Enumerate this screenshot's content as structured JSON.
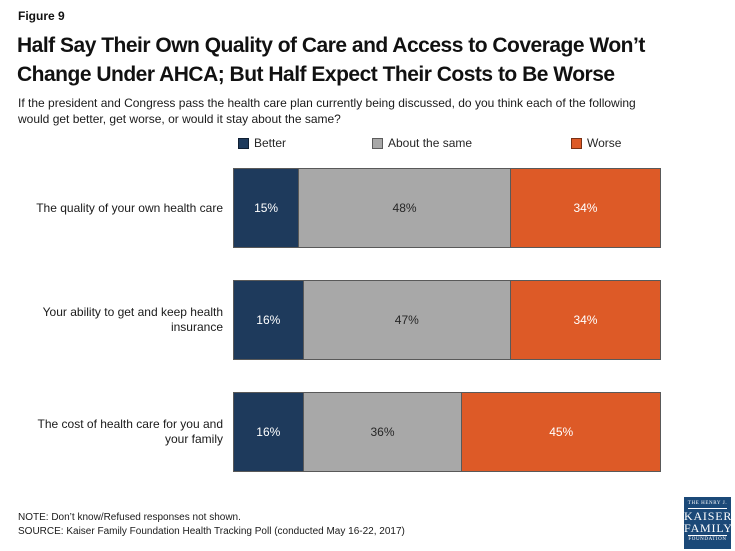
{
  "figure_label": "Figure 9",
  "title": "Half Say Their Own Quality of Care and Access to Coverage Won’t Change Under AHCA; But Half Expect Their Costs to Be Worse",
  "subtitle": "If the president and Congress pass the health care plan currently being discussed, do you think each of the following would get better, get worse, or would it stay about the same?",
  "chart_data": {
    "type": "bar",
    "orientation": "horizontal-stacked",
    "title": "Half Say Their Own Quality of Care and Access to Coverage Won’t Change Under AHCA; But Half Expect Their Costs to Be Worse",
    "categories": [
      "The quality of your own health care",
      "Your ability to get and keep health insurance",
      "The cost of health care for you and your family"
    ],
    "series": [
      {
        "name": "Better",
        "color": "#1e3a5c",
        "label_color": "#ffffff",
        "values": [
          15,
          16,
          16
        ]
      },
      {
        "name": "About the same",
        "color": "#a8a8a8",
        "label_color": "#262626",
        "values": [
          48,
          47,
          36
        ]
      },
      {
        "name": "Worse",
        "color": "#dd5a27",
        "label_color": "#ffffff",
        "values": [
          34,
          34,
          45
        ]
      }
    ],
    "row_total": 97,
    "value_suffix": "%",
    "legend_position": "top",
    "grid": false
  },
  "footer": {
    "note": "NOTE: Don’t know/Refused responses not shown.",
    "source": "SOURCE: Kaiser Family Foundation Health Tracking Poll (conducted May 16-22, 2017)",
    "logo": {
      "line1": "THE HENRY J.",
      "line2": "KAISER",
      "line3": "FAMILY",
      "line4": "FOUNDATION"
    }
  }
}
